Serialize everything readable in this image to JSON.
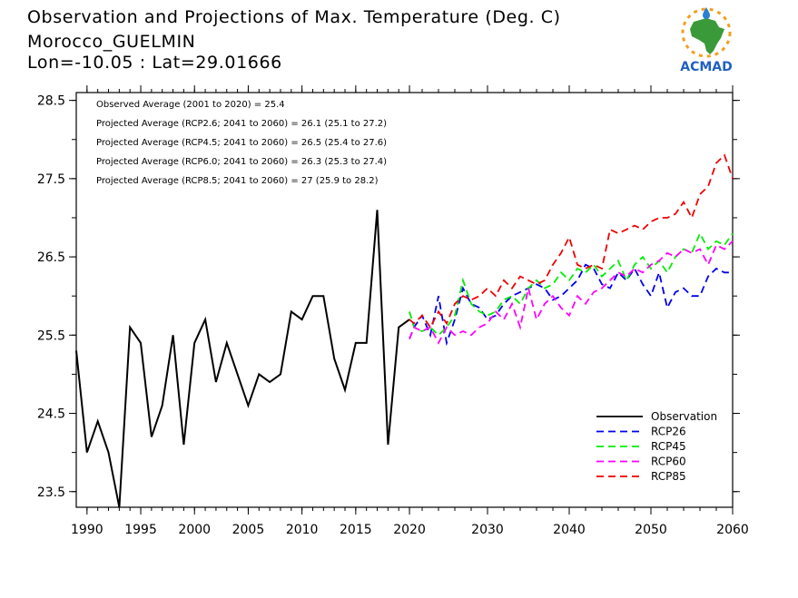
{
  "header": {
    "title": "Observation and Projections of Max. Temperature (Deg. C)",
    "location": "Morocco_GUELMIN",
    "coords": "Lon=-10.05 : Lat=29.01666"
  },
  "logo": {
    "text": "ACMAD",
    "icon": "africa-map-sun-logo",
    "colors": {
      "africa": "#3a9a3a",
      "sun": "#f0a020",
      "text": "#2060c0"
    }
  },
  "annotations": [
    "Observed Average (2001 to 2020) = 25.4",
    "Projected Average (RCP2.6; 2041 to 2060) = 26.1 (25.1 to 27.2)",
    "Projected Average (RCP4.5; 2041 to 2060) = 26.5 (25.4 to 27.6)",
    "Projected Average (RCP6.0; 2041 to 2060) = 26.3 (25.3 to 27.4)",
    "Projected Average (RCP8.5; 2041 to 2060) = 27 (25.9 to 28.2)"
  ],
  "chart_data": {
    "type": "line",
    "xlim": [
      1989,
      2060
    ],
    "ylim": [
      23.3,
      28.6
    ],
    "x_ticks": [
      1990,
      1995,
      2000,
      2005,
      2010,
      2015,
      2020,
      2030,
      2040,
      2050,
      2060
    ],
    "y_ticks": [
      23.5,
      24.5,
      25.5,
      26.5,
      27.5,
      28.5
    ],
    "y_tick_labels": [
      "23.5",
      "24.5",
      "25.5",
      "26.5",
      "27.5",
      "28.5"
    ],
    "legend_position": "bottom-right",
    "series": [
      {
        "name": "Observation",
        "color": "#000000",
        "dashed": false,
        "x": [
          1989,
          1990,
          1991,
          1992,
          1993,
          1994,
          1995,
          1996,
          1997,
          1998,
          1999,
          2000,
          2001,
          2002,
          2003,
          2004,
          2005,
          2006,
          2007,
          2008,
          2009,
          2010,
          2011,
          2012,
          2013,
          2014,
          2015,
          2016,
          2017,
          2018,
          2019,
          2020
        ],
        "values": [
          25.3,
          24.0,
          24.4,
          24.0,
          23.3,
          25.6,
          25.4,
          24.2,
          24.6,
          25.5,
          24.1,
          25.4,
          25.7,
          24.9,
          25.4,
          25.0,
          24.6,
          25.0,
          24.9,
          25.0,
          25.8,
          25.7,
          26.0,
          26.0,
          25.2,
          24.8,
          25.4,
          25.4,
          27.1,
          24.1,
          25.6,
          25.7
        ]
      },
      {
        "name": "RCP26",
        "color": "#0000ee",
        "dashed": true,
        "x": [
          2020,
          2021,
          2022,
          2023,
          2024,
          2025,
          2026,
          2027,
          2028,
          2029,
          2030,
          2031,
          2032,
          2033,
          2034,
          2035,
          2036,
          2037,
          2038,
          2039,
          2040,
          2041,
          2042,
          2043,
          2044,
          2045,
          2046,
          2047,
          2048,
          2049,
          2050,
          2051,
          2052,
          2053,
          2054,
          2055,
          2056,
          2057,
          2058,
          2059,
          2060
        ],
        "values": [
          25.45,
          25.6,
          25.75,
          25.5,
          26.0,
          25.4,
          25.7,
          26.1,
          25.9,
          25.85,
          25.7,
          25.75,
          25.9,
          26.0,
          26.05,
          26.1,
          26.15,
          26.1,
          25.95,
          26.0,
          26.1,
          26.2,
          26.4,
          26.35,
          26.15,
          26.1,
          26.3,
          26.2,
          26.35,
          26.15,
          26.0,
          26.3,
          25.85,
          26.05,
          26.1,
          26.0,
          26.0,
          26.25,
          26.35,
          26.3,
          26.3
        ]
      },
      {
        "name": "RCP45",
        "color": "#00ee00",
        "dashed": true,
        "x": [
          2020,
          2021,
          2022,
          2023,
          2024,
          2025,
          2026,
          2027,
          2028,
          2029,
          2030,
          2031,
          2032,
          2033,
          2034,
          2035,
          2036,
          2037,
          2038,
          2039,
          2040,
          2041,
          2042,
          2043,
          2044,
          2045,
          2046,
          2047,
          2048,
          2049,
          2050,
          2051,
          2052,
          2053,
          2054,
          2055,
          2056,
          2057,
          2058,
          2059,
          2060
        ],
        "values": [
          25.8,
          25.6,
          25.55,
          25.6,
          25.5,
          25.6,
          25.75,
          26.2,
          25.9,
          25.8,
          25.75,
          25.8,
          25.95,
          26.0,
          25.9,
          26.1,
          26.2,
          26.1,
          26.15,
          26.3,
          26.2,
          26.35,
          26.3,
          26.4,
          26.25,
          26.35,
          26.45,
          26.2,
          26.4,
          26.5,
          26.35,
          26.45,
          26.3,
          26.5,
          26.6,
          26.55,
          26.8,
          26.6,
          26.7,
          26.65,
          26.8
        ]
      },
      {
        "name": "RCP60",
        "color": "#ff00ff",
        "dashed": true,
        "x": [
          2020,
          2021,
          2022,
          2023,
          2024,
          2025,
          2026,
          2027,
          2028,
          2029,
          2030,
          2031,
          2032,
          2033,
          2034,
          2035,
          2036,
          2037,
          2038,
          2039,
          2040,
          2041,
          2042,
          2043,
          2044,
          2045,
          2046,
          2047,
          2048,
          2049,
          2050,
          2051,
          2052,
          2053,
          2054,
          2055,
          2056,
          2057,
          2058,
          2059,
          2060
        ],
        "values": [
          25.45,
          25.6,
          25.55,
          25.6,
          25.4,
          25.6,
          25.5,
          25.55,
          25.5,
          25.6,
          25.65,
          25.8,
          25.7,
          25.9,
          25.6,
          26.1,
          25.7,
          25.9,
          26.0,
          25.85,
          25.75,
          26.0,
          25.9,
          26.05,
          26.1,
          26.2,
          26.3,
          26.25,
          26.35,
          26.3,
          26.4,
          26.45,
          26.55,
          26.5,
          26.6,
          26.55,
          26.6,
          26.4,
          26.65,
          26.6,
          26.7
        ]
      },
      {
        "name": "RCP85",
        "color": "#ee0000",
        "dashed": true,
        "x": [
          2020,
          2021,
          2022,
          2023,
          2024,
          2025,
          2026,
          2027,
          2028,
          2029,
          2030,
          2031,
          2032,
          2033,
          2034,
          2035,
          2036,
          2037,
          2038,
          2039,
          2040,
          2041,
          2042,
          2043,
          2044,
          2045,
          2046,
          2047,
          2048,
          2049,
          2050,
          2051,
          2052,
          2053,
          2054,
          2055,
          2056,
          2057,
          2058,
          2059,
          2060
        ],
        "values": [
          25.7,
          25.65,
          25.75,
          25.6,
          25.8,
          25.65,
          25.9,
          26.0,
          25.95,
          26.0,
          26.1,
          26.0,
          26.2,
          26.1,
          26.25,
          26.2,
          26.15,
          26.2,
          26.4,
          26.55,
          26.75,
          26.4,
          26.35,
          26.4,
          26.35,
          26.85,
          26.8,
          26.85,
          26.9,
          26.85,
          26.95,
          27.0,
          27.0,
          27.05,
          27.2,
          27.0,
          27.3,
          27.4,
          27.7,
          27.8,
          27.5
        ]
      }
    ]
  }
}
